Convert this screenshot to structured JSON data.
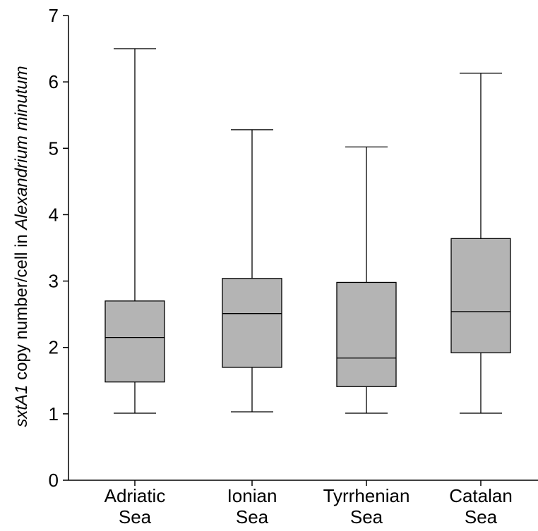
{
  "chart_data": {
    "type": "box",
    "ylabel_parts": [
      {
        "text": "sxtA1",
        "italic": true
      },
      {
        "text": " copy number/cell in ",
        "italic": false
      },
      {
        "text": "Alexandrium minutum",
        "italic": true
      }
    ],
    "ylim": [
      0,
      7
    ],
    "yticks": [
      "0",
      "1",
      "2",
      "3",
      "4",
      "5",
      "6",
      "7"
    ],
    "categories": [
      {
        "lines": [
          "Adriatic",
          "Sea"
        ]
      },
      {
        "lines": [
          "Ionian",
          "Sea"
        ]
      },
      {
        "lines": [
          "Tyrrhenian",
          "Sea"
        ]
      },
      {
        "lines": [
          "Catalan",
          "Sea"
        ]
      }
    ],
    "boxes": [
      {
        "min": 1.01,
        "q1": 1.48,
        "median": 2.15,
        "q3": 2.7,
        "max": 6.5
      },
      {
        "min": 1.03,
        "q1": 1.7,
        "median": 2.51,
        "q3": 3.04,
        "max": 5.28
      },
      {
        "min": 1.01,
        "q1": 1.41,
        "median": 1.84,
        "q3": 2.98,
        "max": 5.02
      },
      {
        "min": 1.01,
        "q1": 1.92,
        "median": 2.54,
        "q3": 3.64,
        "max": 6.13
      }
    ],
    "colors": {
      "box_fill": "#b4b4b4",
      "line": "#000000"
    },
    "grid": false,
    "legend": "none"
  }
}
